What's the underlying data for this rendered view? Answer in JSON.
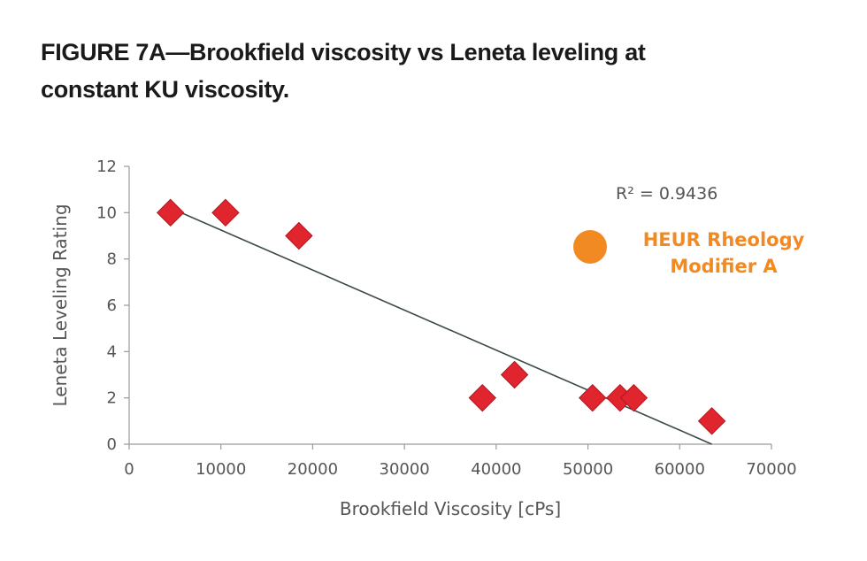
{
  "figure": {
    "title": "FIGURE 7A—Brookfield viscosity vs Leneta leveling at constant KU viscosity."
  },
  "chart_data": {
    "type": "scatter",
    "xlabel": "Brookfield Viscosity [cPs]",
    "ylabel": "Leneta Leveling Rating",
    "xlim": [
      0,
      70000
    ],
    "ylim": [
      0,
      12
    ],
    "x_ticks": [
      "0",
      "10000",
      "20000",
      "30000",
      "40000",
      "50000",
      "60000",
      "70000"
    ],
    "y_ticks": [
      "0",
      "2",
      "4",
      "6",
      "8",
      "10",
      "12"
    ],
    "grid": false,
    "series": [
      {
        "marker": "diamond",
        "color": "#e0252f",
        "points": [
          {
            "x": 4500,
            "y": 10
          },
          {
            "x": 10500,
            "y": 10
          },
          {
            "x": 18500,
            "y": 9
          },
          {
            "x": 38500,
            "y": 2
          },
          {
            "x": 42000,
            "y": 3
          },
          {
            "x": 50500,
            "y": 2
          },
          {
            "x": 53500,
            "y": 2
          },
          {
            "x": 55000,
            "y": 2
          },
          {
            "x": 63500,
            "y": 1
          }
        ]
      }
    ],
    "trendline": {
      "type": "linear",
      "from": {
        "x": 4500,
        "y": 10.2
      },
      "to": {
        "x": 63500,
        "y": 0
      },
      "r_squared_label": "R² = 0.9436"
    },
    "legend": {
      "placement": "right",
      "marker": "circle",
      "color": "#f28a23",
      "label_lines": [
        "HEUR Rheology",
        "Modifier A"
      ]
    }
  }
}
